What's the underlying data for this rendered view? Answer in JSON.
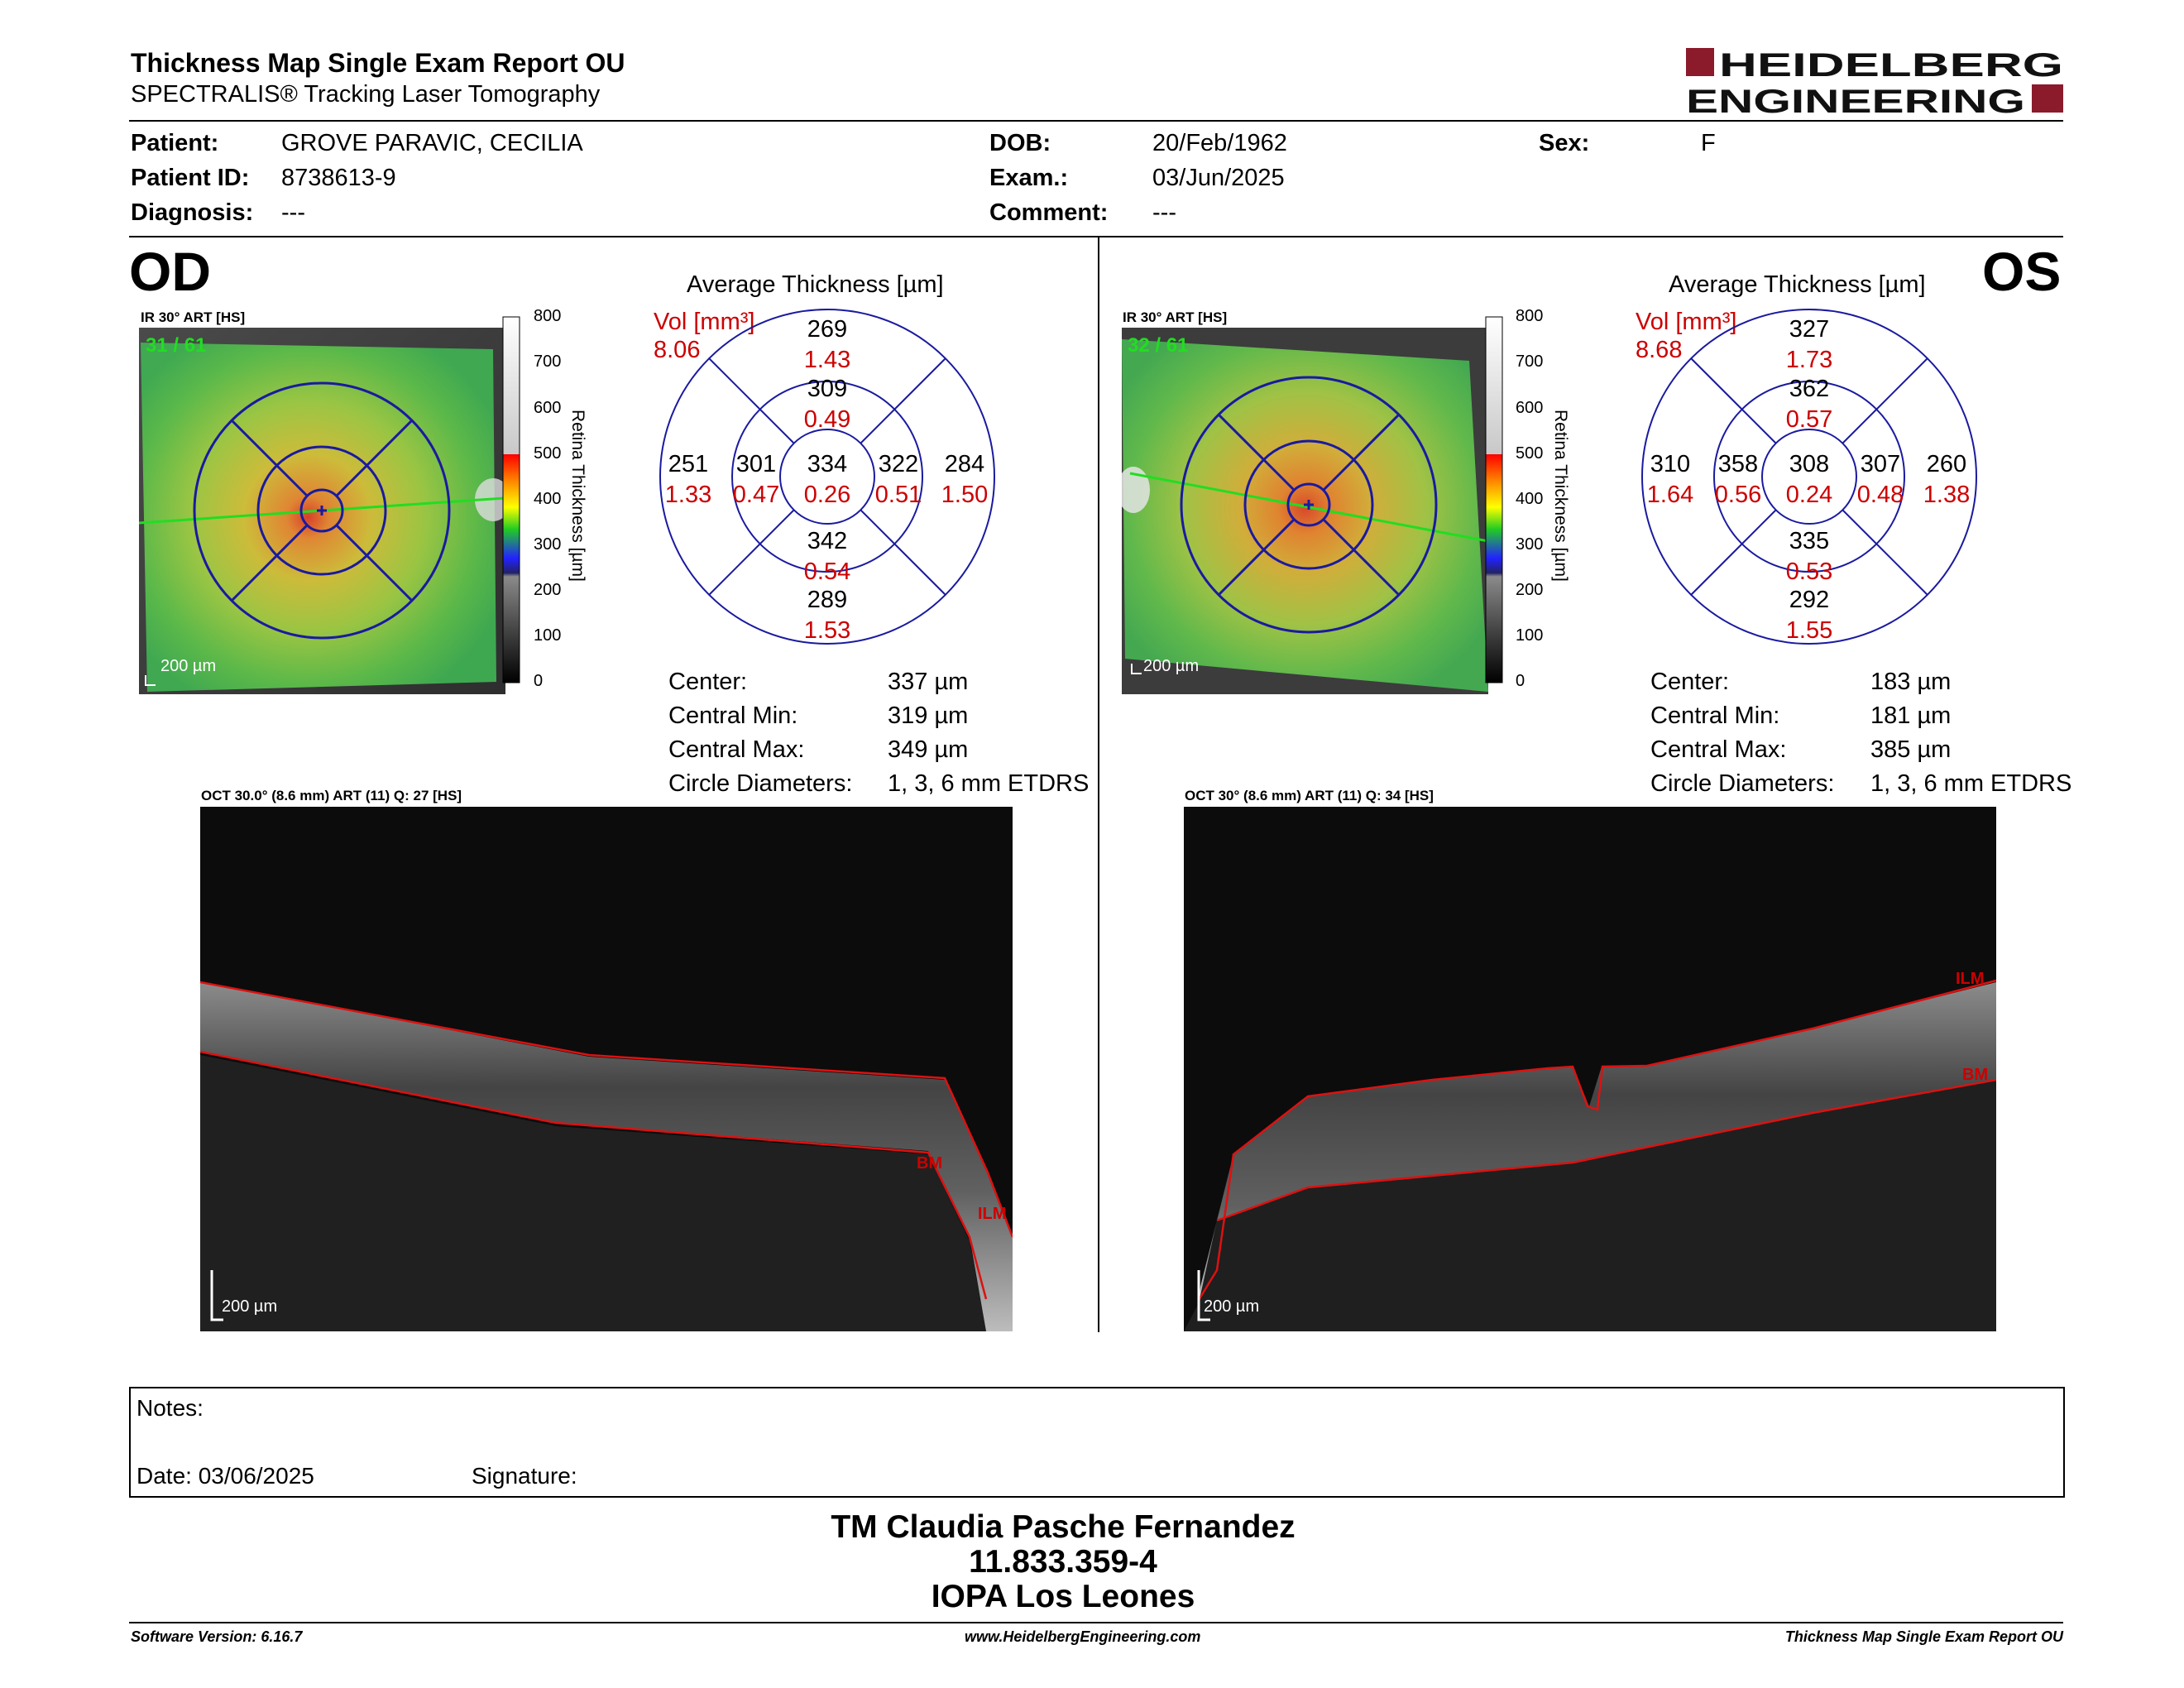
{
  "header": {
    "title": "Thickness Map Single Exam Report OU",
    "subtitle": "SPECTRALIS® Tracking Laser Tomography",
    "logo_line1": "HEIDELBERG",
    "logo_line2": "ENGINEERING"
  },
  "patient": {
    "patient_label": "Patient:",
    "patient_value": "GROVE PARAVIC, CECILIA",
    "id_label": "Patient ID:",
    "id_value": "8738613-9",
    "diagnosis_label": "Diagnosis:",
    "diagnosis_value": "---",
    "dob_label": "DOB:",
    "dob_value": "20/Feb/1962",
    "exam_label": "Exam.:",
    "exam_value": "03/Jun/2025",
    "comment_label": "Comment:",
    "comment_value": "---",
    "sex_label": "Sex:",
    "sex_value": "F"
  },
  "scale_ticks": [
    "800",
    "700",
    "600",
    "500",
    "400",
    "300",
    "200",
    "100",
    "0"
  ],
  "scale_name": "Retina Thickness [µm]",
  "od": {
    "eye_label": "OD",
    "fundus_title": "IR 30° ART [HS]",
    "fundus_counter": "31 / 61",
    "fundus_scalebar": "200 µm",
    "avg_title": "Average Thickness [µm]",
    "vol_label": "Vol [mm³]",
    "vol_value": "8.06",
    "sectors": {
      "center_t": "334",
      "center_v": "0.26",
      "inner_sup_t": "309",
      "inner_sup_v": "0.49",
      "inner_inf_t": "342",
      "inner_inf_v": "0.54",
      "inner_left_t": "301",
      "inner_left_v": "0.47",
      "inner_right_t": "322",
      "inner_right_v": "0.51",
      "outer_sup_t": "269",
      "outer_sup_v": "1.43",
      "outer_inf_t": "289",
      "outer_inf_v": "1.53",
      "outer_left_t": "251",
      "outer_left_v": "1.33",
      "outer_right_t": "284",
      "outer_right_v": "1.50"
    },
    "stats": [
      {
        "label": "Center:",
        "value": "337 µm"
      },
      {
        "label": "Central Min:",
        "value": "319 µm"
      },
      {
        "label": "Central Max:",
        "value": "349 µm"
      },
      {
        "label": "Circle Diameters:",
        "value": "1, 3, 6 mm ETDRS"
      }
    ],
    "oct_title": "OCT 30.0° (8.6 mm) ART (11) Q: 27 [HS]",
    "oct_scalebar": "200 µm",
    "oct_labels": {
      "bm": "BM",
      "ilm": "ILM"
    }
  },
  "os": {
    "eye_label": "OS",
    "fundus_title": "IR 30° ART [HS]",
    "fundus_counter": "32 / 61",
    "fundus_scalebar": "200 µm",
    "avg_title": "Average Thickness [µm]",
    "vol_label": "Vol [mm³]",
    "vol_value": "8.68",
    "sectors": {
      "center_t": "308",
      "center_v": "0.24",
      "inner_sup_t": "362",
      "inner_sup_v": "0.57",
      "inner_inf_t": "335",
      "inner_inf_v": "0.53",
      "inner_left_t": "358",
      "inner_left_v": "0.56",
      "inner_right_t": "307",
      "inner_right_v": "0.48",
      "outer_sup_t": "327",
      "outer_sup_v": "1.73",
      "outer_inf_t": "292",
      "outer_inf_v": "1.55",
      "outer_left_t": "310",
      "outer_left_v": "1.64",
      "outer_right_t": "260",
      "outer_right_v": "1.38"
    },
    "stats": [
      {
        "label": "Center:",
        "value": "183 µm"
      },
      {
        "label": "Central Min:",
        "value": "181 µm"
      },
      {
        "label": "Central Max:",
        "value": "385 µm"
      },
      {
        "label": "Circle Diameters:",
        "value": "1, 3, 6 mm ETDRS"
      }
    ],
    "oct_title": "OCT 30° (8.6 mm) ART (11) Q: 34 [HS]",
    "oct_scalebar": "200 µm",
    "oct_labels": {
      "bm": "BM",
      "ilm": "ILM"
    }
  },
  "notes": {
    "notes_label": "Notes:",
    "date_label": "Date: 03/06/2025",
    "signature_label": "Signature:"
  },
  "signature_block": {
    "line1": "TM Claudia Pasche Fernandez",
    "line2": "11.833.359-4",
    "line3": "IOPA Los Leones"
  },
  "footer": {
    "left": "Software Version: 6.16.7",
    "center": "www.HeidelbergEngineering.com",
    "right": "Thickness Map Single Exam Report OU"
  },
  "colors": {
    "brand": "#8b1a2b",
    "grid_blue": "#1a1aa0",
    "value_red": "#cc0000",
    "scan_green": "#22dd22"
  }
}
